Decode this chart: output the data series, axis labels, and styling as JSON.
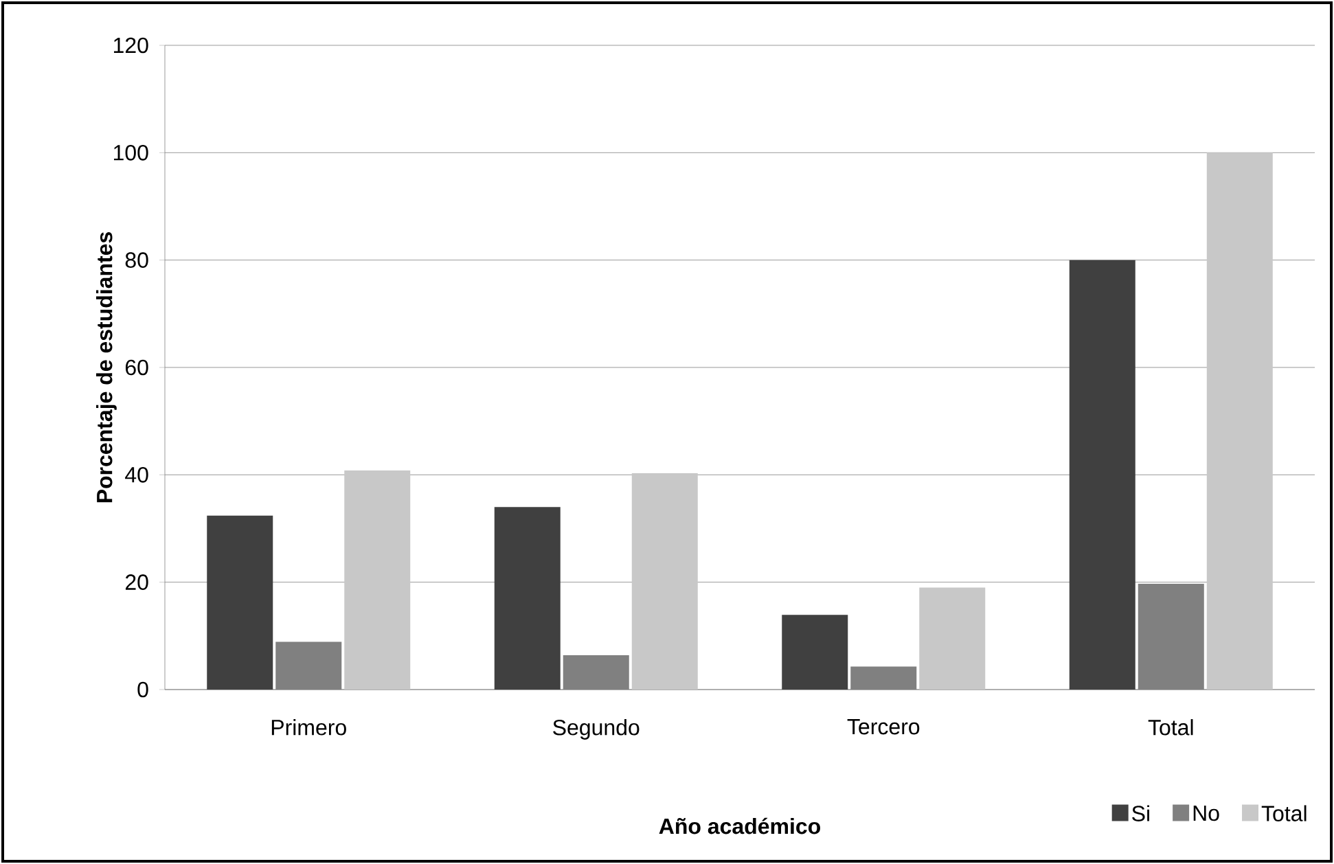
{
  "chart_data": {
    "type": "bar",
    "xlabel": "Año académico",
    "ylabel": "Porcentaje  de estudiantes",
    "categories": [
      "Primero",
      "Segundo",
      "Tercero",
      "Total"
    ],
    "series": [
      {
        "name": "Si",
        "color": "#404040",
        "values": [
          32.4,
          34,
          13.9,
          80
        ]
      },
      {
        "name": "No",
        "color": "#808080",
        "values": [
          8.9,
          6.4,
          4.3,
          19.7
        ]
      },
      {
        "name": "Total",
        "color": "#c8c8c8",
        "values": [
          40.8,
          40.3,
          19,
          100
        ]
      }
    ],
    "ylim": [
      0,
      120
    ],
    "yticks": [
      0,
      20,
      40,
      60,
      80,
      100,
      120
    ],
    "grid": "y",
    "legend": "bottom right"
  }
}
